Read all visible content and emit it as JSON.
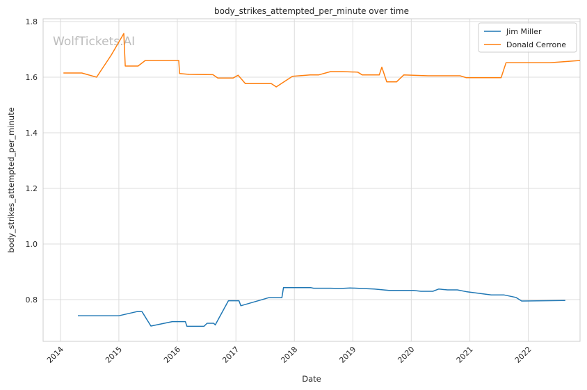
{
  "watermark": "WolfTickets.AI",
  "chart_data": {
    "type": "line",
    "title": "body_strikes_attempted_per_minute over time",
    "xlabel": "Date",
    "ylabel": "body_strikes_attempted_per_minute",
    "xlim": [
      "2013-09-15",
      "2022-11-20"
    ],
    "ylim": [
      0.65,
      1.81
    ],
    "x_ticks": [
      "2014",
      "2015",
      "2016",
      "2017",
      "2018",
      "2019",
      "2020",
      "2021",
      "2022"
    ],
    "y_ticks": [
      0.8,
      1.0,
      1.2,
      1.4,
      1.6,
      1.8
    ],
    "y_tick_labels": [
      "0.8",
      "1.0",
      "1.2",
      "1.4",
      "1.6",
      "1.8"
    ],
    "grid": true,
    "legend_position": "top-right",
    "series": [
      {
        "name": "Jim Miller",
        "color": "#1f77b4",
        "points": [
          [
            "2014-04-20",
            0.742
          ],
          [
            "2015-01-01",
            0.742
          ],
          [
            "2015-04-25",
            0.757
          ],
          [
            "2015-05-25",
            0.757
          ],
          [
            "2015-07-20",
            0.705
          ],
          [
            "2015-12-01",
            0.721
          ],
          [
            "2016-02-20",
            0.721
          ],
          [
            "2016-03-01",
            0.704
          ],
          [
            "2016-06-15",
            0.704
          ],
          [
            "2016-07-05",
            0.715
          ],
          [
            "2016-08-15",
            0.715
          ],
          [
            "2016-08-25",
            0.709
          ],
          [
            "2016-11-15",
            0.796
          ],
          [
            "2017-01-20",
            0.796
          ],
          [
            "2017-02-01",
            0.778
          ],
          [
            "2017-07-25",
            0.807
          ],
          [
            "2017-10-15",
            0.807
          ],
          [
            "2017-10-25",
            0.843
          ],
          [
            "2018-04-15",
            0.843
          ],
          [
            "2018-05-01",
            0.841
          ],
          [
            "2018-08-15",
            0.841
          ],
          [
            "2018-10-15",
            0.84
          ],
          [
            "2018-12-15",
            0.842
          ],
          [
            "2019-05-15",
            0.838
          ],
          [
            "2019-08-15",
            0.833
          ],
          [
            "2020-01-15",
            0.833
          ],
          [
            "2020-03-01",
            0.83
          ],
          [
            "2020-05-15",
            0.83
          ],
          [
            "2020-06-20",
            0.838
          ],
          [
            "2020-08-15",
            0.835
          ],
          [
            "2020-10-15",
            0.835
          ],
          [
            "2020-12-15",
            0.828
          ],
          [
            "2021-05-15",
            0.817
          ],
          [
            "2021-08-01",
            0.817
          ],
          [
            "2021-10-15",
            0.808
          ],
          [
            "2021-11-20",
            0.795
          ],
          [
            "2022-08-20",
            0.797
          ]
        ]
      },
      {
        "name": "Donald Cerrone",
        "color": "#ff7f0e",
        "points": [
          [
            "2014-01-20",
            1.615
          ],
          [
            "2014-05-15",
            1.615
          ],
          [
            "2014-08-15",
            1.6
          ],
          [
            "2014-11-15",
            1.68
          ],
          [
            "2015-02-01",
            1.757
          ],
          [
            "2015-02-10",
            1.64
          ],
          [
            "2015-05-01",
            1.64
          ],
          [
            "2015-06-15",
            1.66
          ],
          [
            "2016-01-10",
            1.66
          ],
          [
            "2016-01-15",
            1.613
          ],
          [
            "2016-03-15",
            1.61
          ],
          [
            "2016-08-10",
            1.609
          ],
          [
            "2016-09-10",
            1.597
          ],
          [
            "2016-12-15",
            1.597
          ],
          [
            "2017-01-15",
            1.607
          ],
          [
            "2017-03-01",
            1.577
          ],
          [
            "2017-08-10",
            1.577
          ],
          [
            "2017-09-10",
            1.565
          ],
          [
            "2017-12-20",
            1.603
          ],
          [
            "2018-04-10",
            1.608
          ],
          [
            "2018-06-01",
            1.608
          ],
          [
            "2018-08-15",
            1.62
          ],
          [
            "2018-11-01",
            1.62
          ],
          [
            "2019-02-01",
            1.618
          ],
          [
            "2019-03-01",
            1.608
          ],
          [
            "2019-06-15",
            1.608
          ],
          [
            "2019-07-01",
            1.636
          ],
          [
            "2019-08-01",
            1.583
          ],
          [
            "2019-10-01",
            1.583
          ],
          [
            "2019-11-15",
            1.608
          ],
          [
            "2020-04-15",
            1.605
          ],
          [
            "2020-11-01",
            1.605
          ],
          [
            "2020-12-10",
            1.598
          ],
          [
            "2021-07-15",
            1.598
          ],
          [
            "2021-08-15",
            1.652
          ],
          [
            "2022-05-15",
            1.652
          ],
          [
            "2022-11-20",
            1.66
          ]
        ]
      }
    ]
  }
}
